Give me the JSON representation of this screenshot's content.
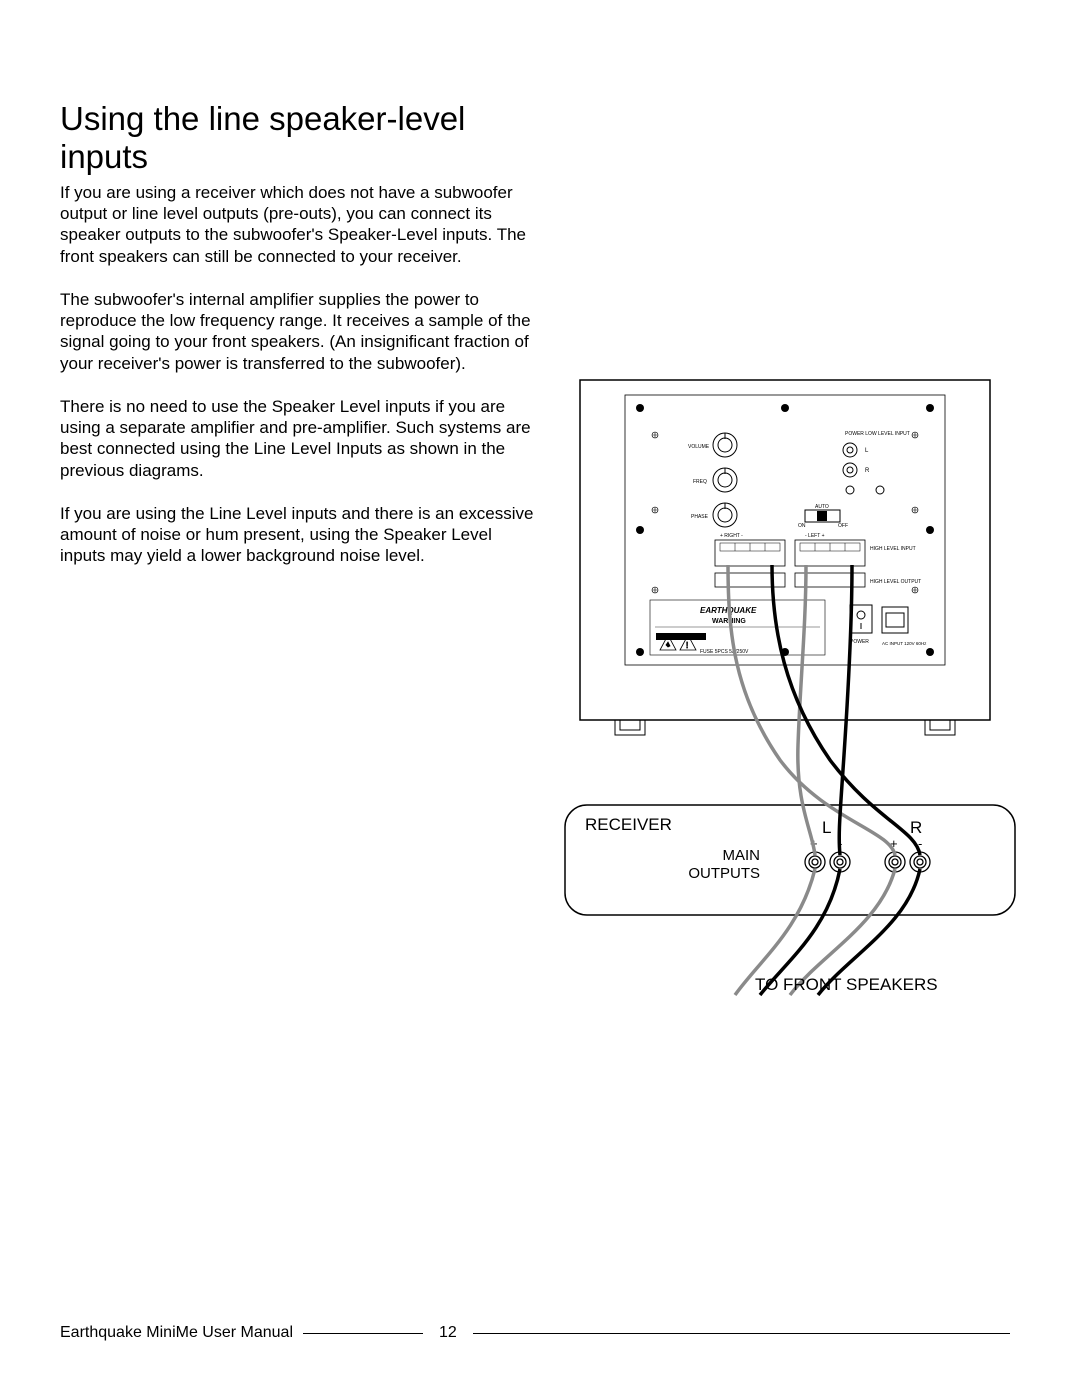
{
  "title": "Using the line speaker-level inputs",
  "paragraphs": {
    "p1": "If you are using a receiver which does not have a subwoofer output or line level outputs (pre-outs), you can connect its speaker outputs to the subwoofer's Speaker-Level inputs. The front speakers can still be connected to your receiver.",
    "p2": "The subwoofer's internal amplifier supplies the power to reproduce the low frequency range. It receives a sample of the signal going to your front speakers. (An insignificant fraction of your receiver's power is transferred to the subwoofer).",
    "p3": "There is no need to use the Speaker Level inputs if you are using a separate amplifier and pre-amplifier. Such systems are best connected using the Line Level Inputs as shown in the previous diagrams.",
    "p4": "If you are using the Line Level inputs and there is an excessive amount of noise or hum present, using the Speaker Level inputs may yield a lower background noise level."
  },
  "diagram": {
    "receiver_label": "RECEIVER",
    "main_outputs": "MAIN OUTPUTS",
    "L": "L",
    "R": "R",
    "plus": "+",
    "minus": "-",
    "to_front": "TO FRONT SPEAKERS",
    "panel": {
      "volume": "VOLUME",
      "freq": "FREQ",
      "phase": "PHASE",
      "power": "POWER LOW LEVEL INPUT",
      "rca_l": "L",
      "rca_r": "R",
      "auto": "AUTO",
      "on": "ON",
      "off": "OFF",
      "right": "+ RIGHT -",
      "left": "- LEFT +",
      "hi_in": "HIGH LEVEL INPUT",
      "hi_out": "HIGH LEVEL OUTPUT",
      "brand": "EARTHQUAKE",
      "warn": "WARNING",
      "fuse": "FUSE 5PCS 5A/250V",
      "power_lbl": "POWER",
      "ac": "AC INPUT 120V 60Hz"
    },
    "colors": {
      "outline": "#000000",
      "grey": "#8a8a8a",
      "bg": "#ffffff"
    }
  },
  "footer": {
    "brand": "Earthquake   MiniMe User Manual",
    "page": "12"
  }
}
